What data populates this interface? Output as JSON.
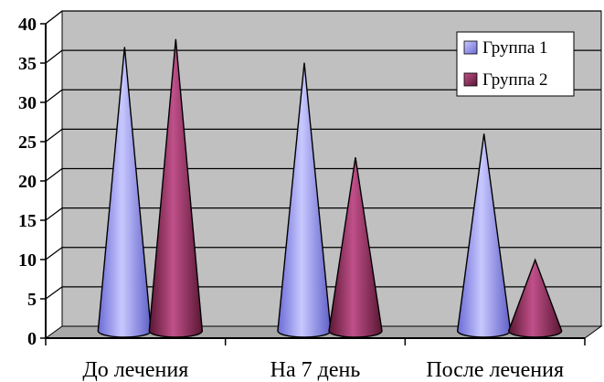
{
  "chart_data": {
    "type": "bar",
    "style": "3d-cone",
    "categories": [
      "До лечения",
      "На 7 день",
      "После лечения"
    ],
    "series": [
      {
        "name": "Группа 1",
        "values": [
          36,
          34,
          25
        ],
        "color": "#9999ff"
      },
      {
        "name": "Группа 2",
        "values": [
          37,
          22,
          9
        ],
        "color": "#993366"
      }
    ],
    "ylim": [
      0,
      40
    ],
    "yticks": [
      "0",
      "5",
      "10",
      "15",
      "20",
      "25",
      "30",
      "35",
      "40"
    ],
    "grid": true,
    "legend": "top-right",
    "wall_color": "#c0c0c0"
  }
}
